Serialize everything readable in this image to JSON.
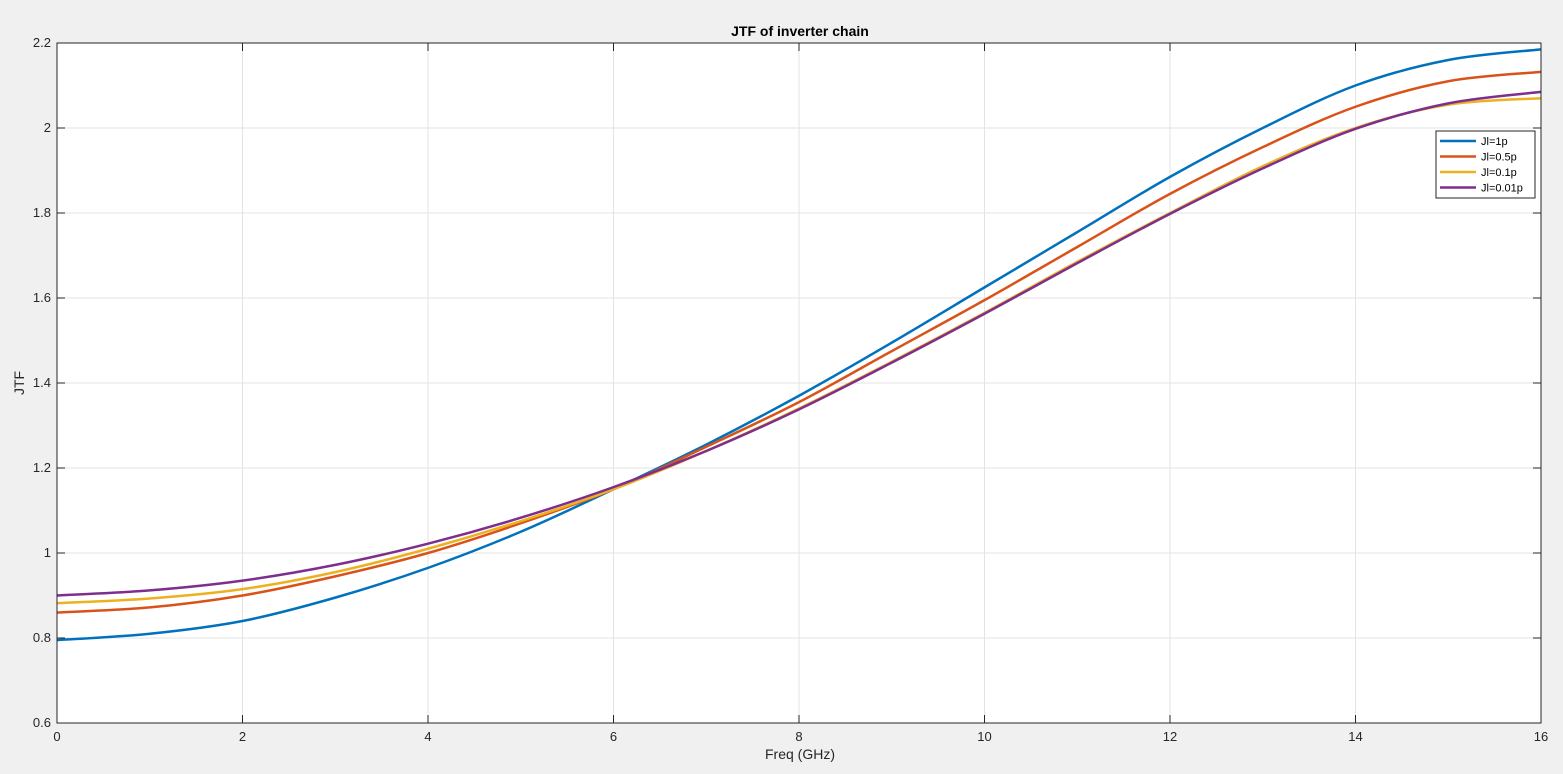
{
  "chart_data": {
    "type": "line",
    "title": "JTF of inverter chain",
    "xlabel": "Freq (GHz)",
    "ylabel": "JTF",
    "xlim": [
      0,
      16
    ],
    "ylim": [
      0.6,
      2.2
    ],
    "xticks": [
      0,
      2,
      4,
      6,
      8,
      10,
      12,
      14,
      16
    ],
    "yticks": [
      0.6,
      0.8,
      1,
      1.2,
      1.4,
      1.6,
      1.8,
      2,
      2.2
    ],
    "xtick_labels": [
      "0",
      "2",
      "4",
      "6",
      "8",
      "10",
      "12",
      "14",
      "16"
    ],
    "ytick_labels": [
      "0.6",
      "0.8",
      "1",
      "1.2",
      "1.4",
      "1.6",
      "1.8",
      "2",
      "2.2"
    ],
    "grid": true,
    "legend_position": "top-right",
    "x": [
      0,
      1,
      2,
      3,
      4,
      5,
      6,
      7,
      8,
      9,
      10,
      11,
      12,
      13,
      14,
      15,
      16
    ],
    "series": [
      {
        "name": "Jl=1p",
        "color": "#0072BD",
        "values": [
          0.795,
          0.81,
          0.84,
          0.895,
          0.965,
          1.05,
          1.15,
          1.255,
          1.37,
          1.495,
          1.625,
          1.755,
          1.885,
          2.0,
          2.1,
          2.16,
          2.185
        ]
      },
      {
        "name": "Jl=0.5p",
        "color": "#D95319",
        "values": [
          0.86,
          0.872,
          0.9,
          0.945,
          1.0,
          1.07,
          1.15,
          1.25,
          1.355,
          1.475,
          1.595,
          1.72,
          1.845,
          1.955,
          2.05,
          2.11,
          2.132
        ]
      },
      {
        "name": "Jl=0.1p",
        "color": "#EDB120",
        "values": [
          0.882,
          0.893,
          0.915,
          0.955,
          1.01,
          1.075,
          1.15,
          1.24,
          1.34,
          1.45,
          1.565,
          1.685,
          1.8,
          1.91,
          2.0,
          2.055,
          2.07
        ]
      },
      {
        "name": "Jl=0.01p",
        "color": "#7E2F8E",
        "values": [
          0.9,
          0.912,
          0.935,
          0.972,
          1.022,
          1.083,
          1.155,
          1.24,
          1.338,
          1.448,
          1.563,
          1.682,
          1.798,
          1.905,
          1.998,
          2.058,
          2.085
        ]
      }
    ]
  }
}
